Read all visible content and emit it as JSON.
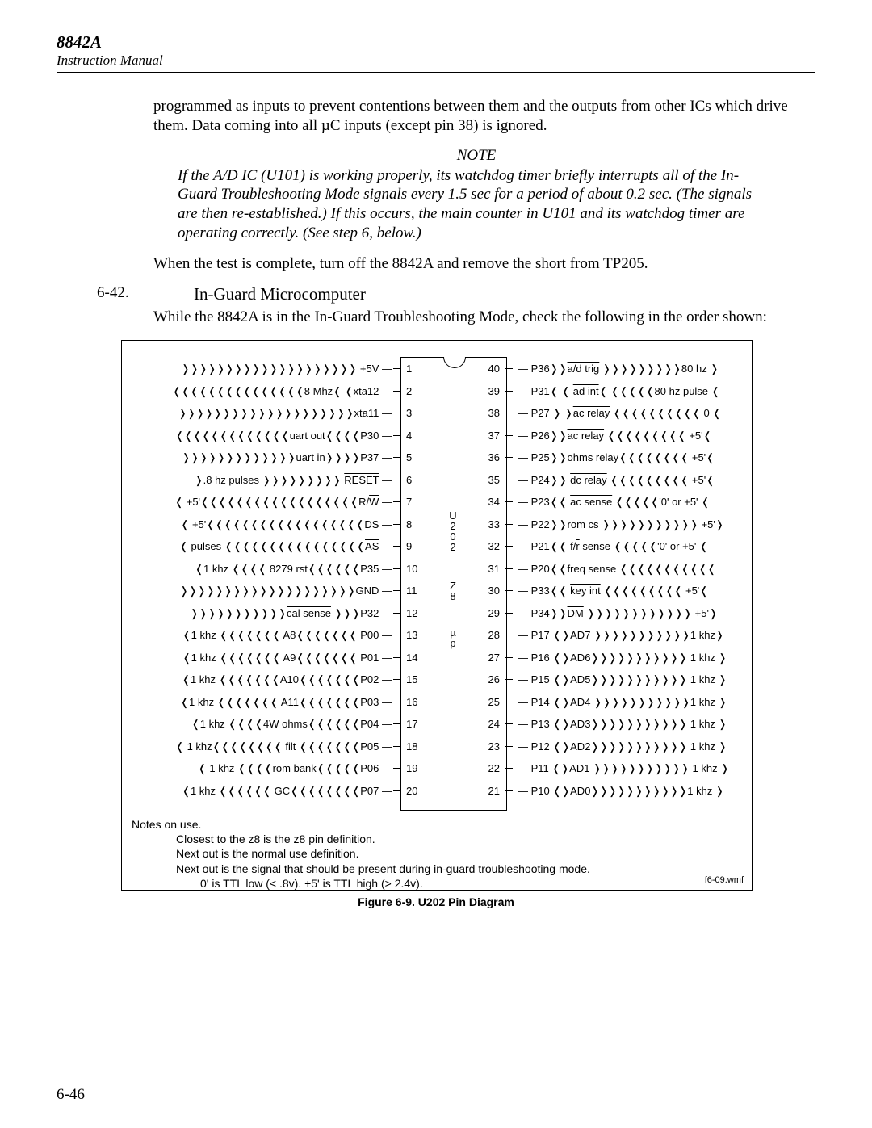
{
  "header": {
    "model": "8842A",
    "sub": "Instruction Manual"
  },
  "para1": "programmed as inputs to prevent contentions between them and the outputs from other ICs which drive them. Data coming into all µC inputs (except pin 38) is ignored.",
  "note": {
    "title": "NOTE",
    "body": "If the A/D IC (U101) is working properly, its watchdog timer briefly interrupts all of the In-Guard Troubleshooting Mode signals every 1.5 sec for a period of about 0.2 sec. (The signals are then re-established.) If this occurs, the main counter in U101 and its watchdog timer are operating correctly. (See step 6, below.)"
  },
  "para2": "When the test is complete, turn off the 8842A and remove the short from TP205.",
  "section": {
    "num": "6-42.",
    "title": "In-Guard Microcomputer",
    "body": "While the 8842A is in the In-Guard Troubleshooting Mode, check the following in the order shown:"
  },
  "chip": {
    "center1": "U\n2\n0\n2",
    "center2": "Z\n8",
    "center3": "µ\np",
    "pins": [
      {
        "ln": 1,
        "rn": 40,
        "lt": "❭❭❭❭❭❭❭❭❭❭❭❭❭❭❭❭❭❭❭❭ +5V",
        "rt": "P36❭❭<span class='ovl'>a/d trig</span> ❭❭❭❭❭❭❭❭❭80 hz ❭"
      },
      {
        "ln": 2,
        "rn": 39,
        "lt": "❬❬❬❬❬❬❬❬❬❬❬❬❬❬❬8 Mhz❬ ❬xta12",
        "rt": "P31❬ ❬ <span class='ovl'>ad int</span>❬ ❬❬❬❬❬80 hz pulse ❬"
      },
      {
        "ln": 3,
        "rn": 38,
        "lt": "❭❭❭❭❭❭❭❭❭❭❭❭❭❭❭❭❭❭❭❭xta11",
        "rt": "P27 ❭ ❭<span class='ovl'>ac relay</span> ❬❬❬❬❬❬❬❬❬❬ 0 ❬"
      },
      {
        "ln": 4,
        "rn": 37,
        "lt": "❬❬❬❬❬❬❬❬❬❬❬❬❬uart out❬❬❬❬P30",
        "rt": "P26❭❭<span class='ovl'>ac relay</span> ❬❬❬❬❬❬❬❬❬ +5'❬"
      },
      {
        "ln": 5,
        "rn": 36,
        "lt": "❭❭❭❭❭❭❭❭❭❭❭❭❭uart in❭❭❭❭P37",
        "rt": "P25❭❭<span class='ovl'>ohms relay</span>❬❬❬❬❬❬❬❬ +5'❬"
      },
      {
        "ln": 6,
        "rn": 35,
        "lt": "❭.8 hz pulses ❭❭❭❭❭❭❭❭❭ <span class='ovl'>RESET</span>",
        "rt": "P24❭❭ <span class='ovl'>dc relay</span> ❬❬❬❬❬❬❬❬❬ +5'❬"
      },
      {
        "ln": 7,
        "rn": 34,
        "lt": "❬ +5'❬❬❬❬❬❬❬❬❬❬❬❬❬❬❬❬❬❬R/<span class='ovl'>W</span>",
        "rt": "P23❬❬ <span class='ovl'>ac sense</span> ❬❬❬❬❬'0' or +5' ❬"
      },
      {
        "ln": 8,
        "rn": 33,
        "lt": "❬ +5'❬❬❬❬❬❬❬❬❬❬❬❬❬❬❬❬❬❬<span class='ovl'>DS</span>",
        "rt": "P22❭❭<span class='ovl'>rom cs</span> ❭❭❭❭❭❭❭❭❭❭❭ +5'❭"
      },
      {
        "ln": 9,
        "rn": 32,
        "lt": "❬ pulses ❬❬❬❬❬❬❬❬❬❬❬❬❬❬❬❬<span class='ovl'>AS</span>",
        "rt": "P21❬❬ f/<span class='ovl'>r</span> sense ❬❬❬❬❬'0' or +5' ❬"
      },
      {
        "ln": 10,
        "rn": 31,
        "lt": "❬1 khz ❬❬❬❬ 8279 rst❬❬❬❬❬❬P35",
        "rt": "P20❬❬freq sense ❬❬❬❬❬❬❬❬❬❬❬"
      },
      {
        "ln": 11,
        "rn": 30,
        "lt": "❭❭❭❭❭❭❭❭❭❭❭❭❭❭❭❭❭❭❭❭GND",
        "rt": "P33❬❬ <span class='ovl'>key int</span> ❬❬❬❬❬❬❬❬❬ +5'❬"
      },
      {
        "ln": 12,
        "rn": 29,
        "lt": "❭❭❭❭❭❭❭❭❭❭❭<span class='ovl'>cal sense</span> ❭❭❭P32",
        "rt": "P34❭❭<span class='ovl'>DM</span>  ❭❭❭❭❭❭❭❭❭❭❭❭ +5'❭"
      },
      {
        "ln": 13,
        "rn": 28,
        "lt": "❬1 khz ❬❬❬❬❬❬❬ A8❬❬❬❬❬❬❬ P00",
        "rt": "P17 ❬❭AD7 ❭❭❭❭❭❭❭❭❭❭❭1 khz❭"
      },
      {
        "ln": 14,
        "rn": 27,
        "lt": "❬1 khz ❬❬❬❬❬❬❬ A9❬❬❬❬❬❬❬ P01",
        "rt": "P16 ❬❭AD6❭❭❭❭❭❭❭❭❭❭❭ 1 khz ❭"
      },
      {
        "ln": 15,
        "rn": 26,
        "lt": "❬1 khz ❬❬❬❬❬❬❬A10❬❬❬❬❬❬❬P02",
        "rt": "P15 ❬❭AD5❭❭❭❭❭❭❭❭❭❭❭ 1 khz ❭"
      },
      {
        "ln": 16,
        "rn": 25,
        "lt": "❬1 khz ❬❬❬❬❬❬❬ A11❬❬❬❬❬❬❬P03",
        "rt": "P14 ❬❭AD4 ❭❭❭❭❭❭❭❭❭❭❭1 khz ❭"
      },
      {
        "ln": 17,
        "rn": 24,
        "lt": "❬1 khz ❬❬❬❬4W ohms❬❬❬❬❬❬P04",
        "rt": "P13 ❬❭AD3❭❭❭❭❭❭❭❭❭❭❭ 1 khz ❭"
      },
      {
        "ln": 18,
        "rn": 23,
        "lt": "❬ 1 khz❬❬❬❬❬❬❬❬ filt ❬❬❬❬❬❬❬P05",
        "rt": "P12 ❬❭AD2❭❭❭❭❭❭❭❭❭❭❭ 1 khz ❭"
      },
      {
        "ln": 19,
        "rn": 22,
        "lt": "❬ 1 khz ❬❬❬❬rom bank❬❬❬❬❬P06",
        "rt": "P11 ❬❭AD1 ❭❭❭❭❭❭❭❭❭❭❭ 1 khz ❭"
      },
      {
        "ln": 20,
        "rn": 21,
        "lt": "❬1 khz ❬❬❬❬❬❬ GC❬❬❬❬❬❬❬❬P07",
        "rt": "P10 ❬❭AD0❭❭❭❭❭❭❭❭❭❭❭1 khz ❭"
      }
    ],
    "notes_title": "Notes on use.",
    "notes1": "Closest to the z8 is the z8 pin definition.",
    "notes2": "Next out is the normal use definition.",
    "notes3": "Next out is the signal that should be present during in-guard troubleshooting mode.",
    "notes4": "0' is TTL low (< .8v).    +5' is TTL high (> 2.4v).",
    "wmf": "f6-09.wmf"
  },
  "figure_caption": "Figure 6-9. U202 Pin Diagram",
  "page_num": "6-46"
}
